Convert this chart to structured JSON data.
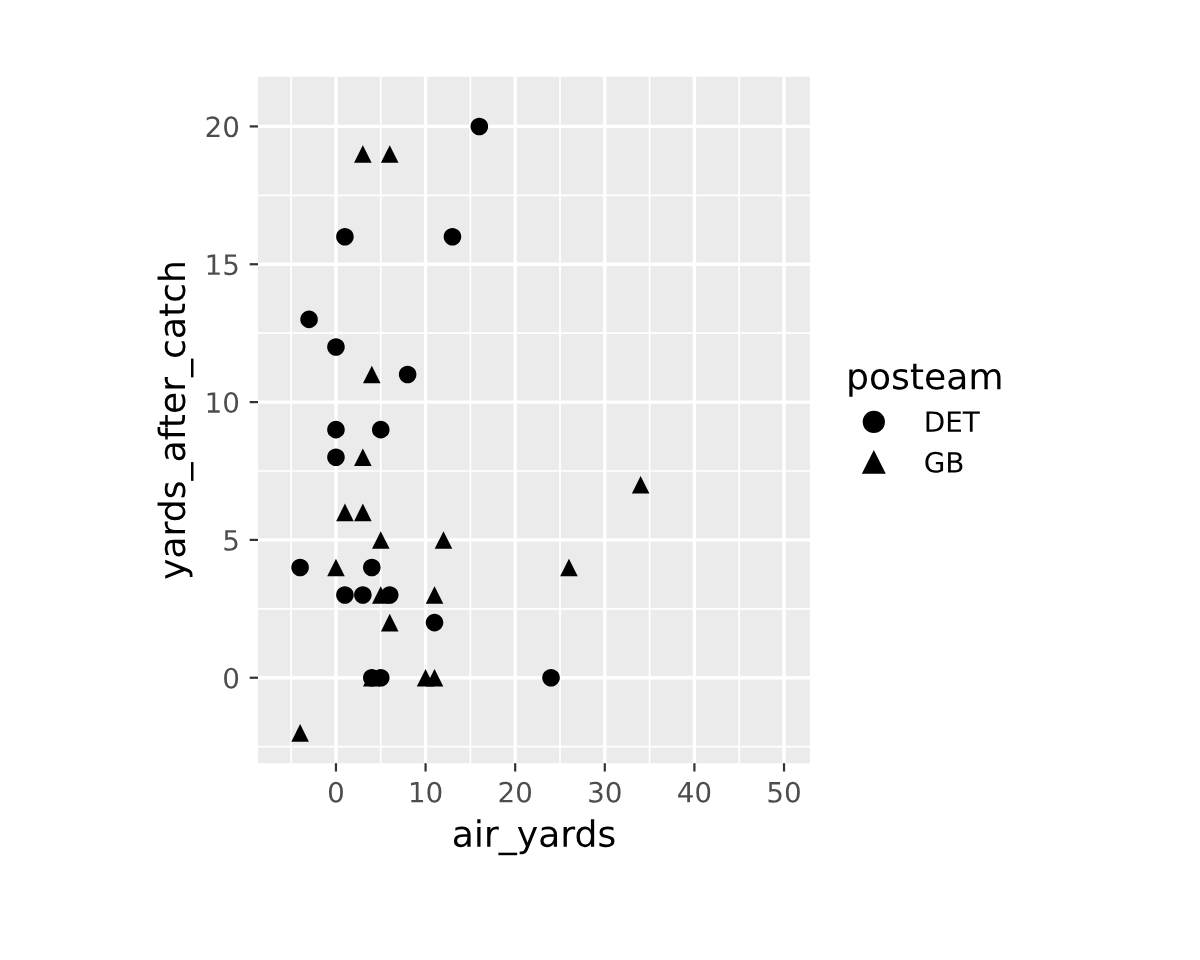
{
  "chart_data": {
    "type": "scatter",
    "xlabel": "air_yards",
    "ylabel": "yards_after_catch",
    "legend_title": "posteam",
    "legend": "right",
    "grid": true,
    "xlim": [
      -8.7,
      52.9
    ],
    "ylim": [
      -3.1,
      21.8
    ],
    "xticks": [
      0,
      10,
      20,
      30,
      40,
      50
    ],
    "yticks": [
      0,
      5,
      10,
      15,
      20
    ],
    "series": [
      {
        "name": "DET",
        "color": "#000000",
        "marker": "circle",
        "x": [
          16,
          1,
          13,
          -3,
          0,
          8,
          0,
          5,
          0,
          -4,
          4,
          1,
          3,
          6,
          11,
          4,
          5,
          24
        ],
        "values": [
          20,
          16,
          16,
          13,
          12,
          11,
          9,
          9,
          8,
          4,
          4,
          3,
          3,
          3,
          2,
          0,
          0,
          0
        ]
      },
      {
        "name": "GB",
        "color": "#000000",
        "marker": "triangle",
        "x": [
          3,
          6,
          4,
          3,
          1,
          3,
          5,
          12,
          0,
          26,
          5,
          11,
          6,
          4,
          10,
          11,
          34,
          -4
        ],
        "values": [
          19,
          19,
          11,
          8,
          6,
          6,
          5,
          5,
          4,
          4,
          3,
          3,
          2,
          0,
          0,
          0,
          7,
          -2
        ]
      }
    ]
  }
}
